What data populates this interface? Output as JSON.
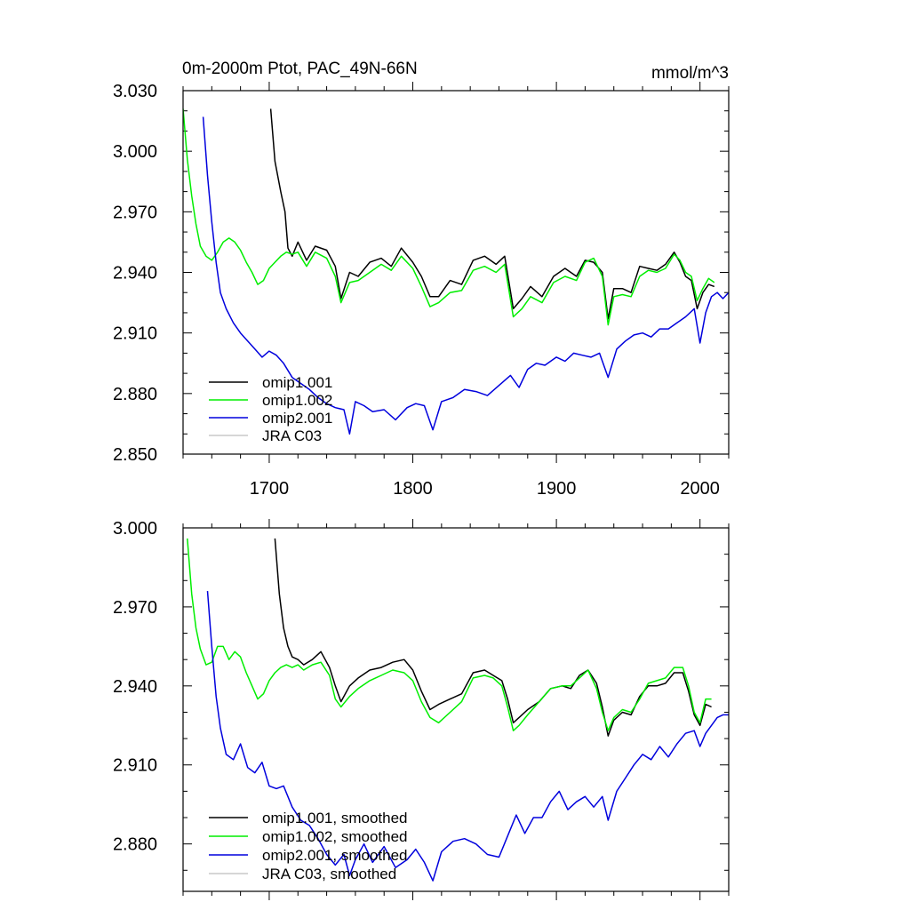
{
  "figure": {
    "title_left": "0m-2000m Ptot, PAC_49N-66N",
    "title_right": "mmol/m^3"
  },
  "chart_data": [
    {
      "type": "line",
      "title": "0m-2000m Ptot, PAC_49N-66N",
      "units": "mmol/m^3",
      "xlim": [
        1640,
        2020
      ],
      "ylim": [
        2.85,
        3.03
      ],
      "xticks": [
        1700,
        1800,
        1900,
        2000
      ],
      "xtick_labels": [
        "1700",
        "1800",
        "1900",
        "2000"
      ],
      "yticks": [
        2.85,
        2.88,
        2.91,
        2.94,
        2.97,
        3.0,
        3.03
      ],
      "ytick_labels": [
        "2.850",
        "2.880",
        "2.910",
        "2.940",
        "2.970",
        "3.000",
        "3.030"
      ],
      "legend_position": "bottom-left",
      "legend": [
        "omip1.001",
        "omip1.002",
        "omip2.001",
        "JRA C03"
      ],
      "series": [
        {
          "name": "omip1.001",
          "color": "#000000",
          "x": [
            1701,
            1704,
            1708,
            1711,
            1713,
            1716,
            1720,
            1726,
            1732,
            1740,
            1746,
            1750,
            1756,
            1762,
            1770,
            1778,
            1785,
            1792,
            1800,
            1806,
            1812,
            1818,
            1826,
            1834,
            1842,
            1850,
            1858,
            1864,
            1870,
            1876,
            1882,
            1890,
            1898,
            1906,
            1914,
            1920,
            1926,
            1932,
            1936,
            1940,
            1946,
            1952,
            1958,
            1964,
            1970,
            1976,
            1982,
            1986,
            1990,
            1994,
            1998,
            2002,
            2006,
            2010
          ],
          "y": [
            3.021,
            2.995,
            2.98,
            2.97,
            2.952,
            2.948,
            2.955,
            2.946,
            2.953,
            2.951,
            2.943,
            2.927,
            2.94,
            2.938,
            2.945,
            2.947,
            2.943,
            2.952,
            2.945,
            2.938,
            2.928,
            2.928,
            2.936,
            2.934,
            2.946,
            2.948,
            2.944,
            2.948,
            2.922,
            2.927,
            2.933,
            2.928,
            2.938,
            2.942,
            2.938,
            2.946,
            2.945,
            2.94,
            2.917,
            2.932,
            2.932,
            2.93,
            2.943,
            2.942,
            2.941,
            2.944,
            2.95,
            2.945,
            2.938,
            2.936,
            2.922,
            2.93,
            2.934,
            2.933
          ]
        },
        {
          "name": "omip1.002",
          "color": "#00ee00",
          "x": [
            1640,
            1643,
            1646,
            1649,
            1652,
            1656,
            1660,
            1664,
            1668,
            1672,
            1676,
            1680,
            1684,
            1688,
            1692,
            1696,
            1700,
            1704,
            1708,
            1712,
            1716,
            1720,
            1726,
            1732,
            1740,
            1746,
            1750,
            1756,
            1762,
            1770,
            1778,
            1785,
            1792,
            1800,
            1806,
            1812,
            1818,
            1826,
            1834,
            1842,
            1850,
            1858,
            1864,
            1870,
            1876,
            1882,
            1890,
            1898,
            1906,
            1914,
            1920,
            1926,
            1932,
            1936,
            1940,
            1946,
            1952,
            1958,
            1964,
            1970,
            1976,
            1982,
            1986,
            1990,
            1994,
            1998,
            2002,
            2006,
            2010
          ],
          "y": [
            3.021,
            2.996,
            2.978,
            2.964,
            2.953,
            2.948,
            2.946,
            2.95,
            2.955,
            2.957,
            2.955,
            2.951,
            2.945,
            2.94,
            2.934,
            2.936,
            2.942,
            2.945,
            2.948,
            2.95,
            2.949,
            2.95,
            2.943,
            2.95,
            2.947,
            2.938,
            2.925,
            2.935,
            2.936,
            2.94,
            2.944,
            2.941,
            2.948,
            2.942,
            2.933,
            2.923,
            2.925,
            2.93,
            2.931,
            2.941,
            2.943,
            2.94,
            2.944,
            2.918,
            2.922,
            2.928,
            2.925,
            2.935,
            2.938,
            2.936,
            2.945,
            2.947,
            2.938,
            2.914,
            2.928,
            2.929,
            2.928,
            2.938,
            2.941,
            2.94,
            2.942,
            2.949,
            2.946,
            2.94,
            2.938,
            2.926,
            2.932,
            2.937,
            2.935
          ]
        },
        {
          "name": "omip2.001",
          "color": "#0000dd",
          "x": [
            1654,
            1657,
            1660,
            1663,
            1666,
            1670,
            1675,
            1680,
            1685,
            1690,
            1695,
            1700,
            1705,
            1710,
            1716,
            1722,
            1728,
            1734,
            1740,
            1746,
            1752,
            1756,
            1760,
            1766,
            1772,
            1780,
            1788,
            1796,
            1802,
            1808,
            1814,
            1820,
            1828,
            1836,
            1844,
            1852,
            1860,
            1868,
            1874,
            1880,
            1886,
            1892,
            1900,
            1906,
            1912,
            1918,
            1924,
            1930,
            1936,
            1942,
            1948,
            1954,
            1960,
            1966,
            1972,
            1978,
            1984,
            1990,
            1996,
            2000,
            2004,
            2008,
            2012,
            2016,
            2020
          ],
          "y": [
            3.017,
            2.988,
            2.965,
            2.945,
            2.93,
            2.922,
            2.915,
            2.91,
            2.906,
            2.902,
            2.898,
            2.901,
            2.899,
            2.895,
            2.888,
            2.885,
            2.882,
            2.878,
            2.875,
            2.873,
            2.872,
            2.86,
            2.876,
            2.874,
            2.871,
            2.872,
            2.867,
            2.873,
            2.875,
            2.874,
            2.862,
            2.876,
            2.878,
            2.882,
            2.881,
            2.879,
            2.884,
            2.889,
            2.883,
            2.892,
            2.895,
            2.894,
            2.898,
            2.896,
            2.9,
            2.899,
            2.898,
            2.9,
            2.888,
            2.902,
            2.906,
            2.909,
            2.91,
            2.908,
            2.912,
            2.912,
            2.915,
            2.918,
            2.922,
            2.905,
            2.92,
            2.928,
            2.93,
            2.927,
            2.93
          ]
        },
        {
          "name": "JRA C03",
          "color": "#c8c8c8",
          "x": [],
          "y": []
        }
      ]
    },
    {
      "type": "line",
      "title": "",
      "xlim": [
        1640,
        2020
      ],
      "ylim": [
        2.862,
        3.0
      ],
      "xticks": [
        1700,
        1800,
        1900,
        2000
      ],
      "xtick_labels": [],
      "yticks": [
        2.88,
        2.91,
        2.94,
        2.97,
        3.0
      ],
      "ytick_labels": [
        "2.880",
        "2.910",
        "2.940",
        "2.970",
        "3.000"
      ],
      "legend_position": "bottom-left",
      "legend": [
        "omip1.001, smoothed",
        "omip1.002, smoothed",
        "omip2.001, smoothed",
        "JRA C03, smoothed"
      ],
      "series": [
        {
          "name": "omip1.001, smoothed",
          "color": "#000000",
          "x": [
            1704,
            1707,
            1710,
            1713,
            1716,
            1720,
            1724,
            1730,
            1736,
            1742,
            1746,
            1750,
            1756,
            1762,
            1770,
            1778,
            1786,
            1794,
            1800,
            1806,
            1812,
            1818,
            1826,
            1834,
            1842,
            1850,
            1856,
            1862,
            1866,
            1870,
            1874,
            1880,
            1888,
            1896,
            1904,
            1910,
            1916,
            1922,
            1928,
            1932,
            1936,
            1940,
            1946,
            1952,
            1958,
            1964,
            1970,
            1976,
            1982,
            1988,
            1992,
            1996,
            2000,
            2004,
            2008
          ],
          "y": [
            2.996,
            2.975,
            2.962,
            2.955,
            2.951,
            2.95,
            2.948,
            2.95,
            2.953,
            2.947,
            2.94,
            2.934,
            2.94,
            2.943,
            2.946,
            2.947,
            2.949,
            2.95,
            2.946,
            2.938,
            2.931,
            2.933,
            2.935,
            2.937,
            2.945,
            2.946,
            2.944,
            2.942,
            2.935,
            2.926,
            2.928,
            2.931,
            2.934,
            2.939,
            2.94,
            2.939,
            2.944,
            2.946,
            2.941,
            2.932,
            2.921,
            2.927,
            2.93,
            2.929,
            2.936,
            2.94,
            2.94,
            2.941,
            2.945,
            2.945,
            2.938,
            2.929,
            2.925,
            2.933,
            2.932
          ]
        },
        {
          "name": "omip1.002, smoothed",
          "color": "#00ee00",
          "x": [
            1643,
            1646,
            1649,
            1652,
            1656,
            1660,
            1664,
            1668,
            1672,
            1676,
            1680,
            1684,
            1688,
            1692,
            1696,
            1700,
            1704,
            1708,
            1712,
            1716,
            1720,
            1724,
            1730,
            1736,
            1742,
            1746,
            1750,
            1756,
            1762,
            1770,
            1778,
            1786,
            1794,
            1800,
            1806,
            1812,
            1818,
            1826,
            1834,
            1842,
            1850,
            1856,
            1862,
            1866,
            1870,
            1874,
            1880,
            1888,
            1896,
            1904,
            1910,
            1916,
            1922,
            1928,
            1932,
            1936,
            1940,
            1946,
            1952,
            1958,
            1964,
            1970,
            1976,
            1982,
            1988,
            1992,
            1996,
            2000,
            2004,
            2008
          ],
          "y": [
            2.996,
            2.975,
            2.962,
            2.954,
            2.948,
            2.949,
            2.955,
            2.955,
            2.95,
            2.953,
            2.951,
            2.945,
            2.94,
            2.935,
            2.937,
            2.942,
            2.945,
            2.947,
            2.948,
            2.947,
            2.948,
            2.946,
            2.948,
            2.949,
            2.944,
            2.935,
            2.932,
            2.936,
            2.939,
            2.942,
            2.944,
            2.946,
            2.945,
            2.942,
            2.934,
            2.928,
            2.926,
            2.93,
            2.934,
            2.943,
            2.944,
            2.943,
            2.94,
            2.932,
            2.923,
            2.925,
            2.929,
            2.934,
            2.939,
            2.94,
            2.94,
            2.943,
            2.946,
            2.939,
            2.93,
            2.923,
            2.928,
            2.931,
            2.93,
            2.935,
            2.941,
            2.942,
            2.943,
            2.947,
            2.947,
            2.94,
            2.93,
            2.926,
            2.935,
            2.935
          ]
        },
        {
          "name": "omip2.001, smoothed",
          "color": "#0000dd",
          "x": [
            1657,
            1660,
            1663,
            1666,
            1670,
            1675,
            1680,
            1685,
            1690,
            1695,
            1700,
            1705,
            1710,
            1716,
            1722,
            1728,
            1734,
            1740,
            1746,
            1752,
            1756,
            1760,
            1766,
            1772,
            1780,
            1788,
            1796,
            1802,
            1808,
            1814,
            1820,
            1828,
            1836,
            1844,
            1852,
            1860,
            1866,
            1872,
            1878,
            1884,
            1890,
            1896,
            1902,
            1908,
            1914,
            1920,
            1926,
            1932,
            1936,
            1942,
            1948,
            1954,
            1960,
            1966,
            1972,
            1978,
            1984,
            1990,
            1996,
            2000,
            2004,
            2008,
            2012,
            2016,
            2020
          ],
          "y": [
            2.976,
            2.955,
            2.936,
            2.924,
            2.914,
            2.912,
            2.918,
            2.909,
            2.907,
            2.911,
            2.902,
            2.901,
            2.902,
            2.894,
            2.889,
            2.887,
            2.882,
            2.876,
            2.872,
            2.876,
            2.868,
            2.874,
            2.88,
            2.873,
            2.879,
            2.871,
            2.874,
            2.878,
            2.873,
            2.866,
            2.877,
            2.881,
            2.882,
            2.88,
            2.876,
            2.875,
            2.883,
            2.891,
            2.884,
            2.89,
            2.89,
            2.896,
            2.9,
            2.893,
            2.896,
            2.898,
            2.894,
            2.898,
            2.889,
            2.9,
            2.905,
            2.91,
            2.914,
            2.912,
            2.917,
            2.913,
            2.918,
            2.922,
            2.923,
            2.917,
            2.922,
            2.925,
            2.928,
            2.929,
            2.929
          ]
        },
        {
          "name": "JRA C03, smoothed",
          "color": "#c8c8c8",
          "x": [],
          "y": []
        }
      ]
    }
  ]
}
